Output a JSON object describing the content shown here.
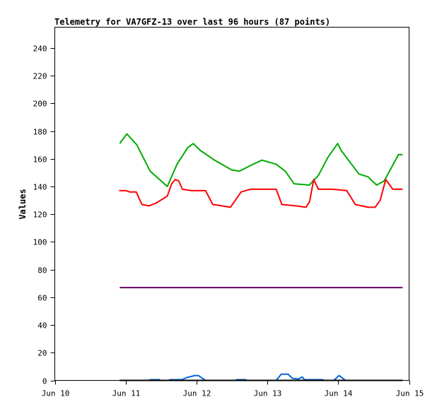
{
  "chart_data": {
    "type": "line",
    "title": "Telemetry for VA7GFZ-13 over last 96 hours (87 points)",
    "xlabel": "",
    "ylabel": "Values",
    "ylim": [
      0,
      255
    ],
    "xlim": [
      "Jun 10 00:00",
      "Jun 15 00:00"
    ],
    "yticks": [
      "0",
      "20",
      "40",
      "60",
      "80",
      "100",
      "120",
      "140",
      "160",
      "180",
      "200",
      "220",
      "240"
    ],
    "xticks": [
      "Jun 10",
      "Jun 11",
      "Jun 12",
      "Jun 13",
      "Jun 14",
      "Jun 15"
    ],
    "grid": false,
    "series": [
      {
        "color": "#00aa00",
        "points": [
          [
            "Jun 10 22:00",
            171
          ],
          [
            "Jun 11 00:24",
            178
          ],
          [
            "Jun 11 03:48",
            170
          ],
          [
            "Jun 11 08:18",
            151
          ],
          [
            "Jun 11 14:06",
            140
          ],
          [
            "Jun 11 17:24",
            156
          ],
          [
            "Jun 11 21:00",
            168
          ],
          [
            "Jun 11 22:54",
            171
          ],
          [
            "Jun 12 01:18",
            166
          ],
          [
            "Jun 12 06:06",
            159
          ],
          [
            "Jun 12 11:54",
            152
          ],
          [
            "Jun 12 14:30",
            151
          ],
          [
            "Jun 12 19:06",
            156
          ],
          [
            "Jun 12 22:12",
            159
          ],
          [
            "Jun 13 03:00",
            156
          ],
          [
            "Jun 13 06:06",
            151
          ],
          [
            "Jun 13 09:00",
            142
          ],
          [
            "Jun 13 14:12",
            141
          ],
          [
            "Jun 13 17:18",
            148
          ],
          [
            "Jun 13 20:30",
            161
          ],
          [
            "Jun 13 23:48",
            171
          ],
          [
            "Jun 14 01:00",
            166
          ],
          [
            "Jun 14 07:00",
            149
          ],
          [
            "Jun 14 10:06",
            147
          ],
          [
            "Jun 14 13:00",
            141
          ],
          [
            "Jun 14 15:36",
            144
          ],
          [
            "Jun 14 20:24",
            163
          ],
          [
            "Jun 14 21:48",
            163
          ]
        ]
      },
      {
        "color": "#ff0000",
        "points": [
          [
            "Jun 10 21:48",
            137
          ],
          [
            "Jun 11 00:12",
            137
          ],
          [
            "Jun 11 01:24",
            136
          ],
          [
            "Jun 11 03:36",
            136
          ],
          [
            "Jun 11 05:30",
            127
          ],
          [
            "Jun 11 07:54",
            126
          ],
          [
            "Jun 11 10:18",
            128
          ],
          [
            "Jun 11 14:06",
            133
          ],
          [
            "Jun 11 15:36",
            142
          ],
          [
            "Jun 11 16:48",
            145
          ],
          [
            "Jun 11 18:00",
            144
          ],
          [
            "Jun 11 19:12",
            138
          ],
          [
            "Jun 11 22:18",
            137
          ],
          [
            "Jun 12 03:06",
            137
          ],
          [
            "Jun 12 05:30",
            127
          ],
          [
            "Jun 12 08:36",
            126
          ],
          [
            "Jun 12 11:30",
            125
          ],
          [
            "Jun 12 15:06",
            136
          ],
          [
            "Jun 12 18:12",
            138
          ],
          [
            "Jun 13 03:00",
            138
          ],
          [
            "Jun 13 04:54",
            127
          ],
          [
            "Jun 13 09:30",
            126
          ],
          [
            "Jun 13 13:06",
            125
          ],
          [
            "Jun 13 14:18",
            129
          ],
          [
            "Jun 13 15:42",
            145
          ],
          [
            "Jun 13 17:18",
            138
          ],
          [
            "Jun 13 22:06",
            138
          ],
          [
            "Jun 14 02:54",
            137
          ],
          [
            "Jun 14 05:48",
            127
          ],
          [
            "Jun 14 10:06",
            125
          ],
          [
            "Jun 14 12:30",
            125
          ],
          [
            "Jun 14 14:12",
            130
          ],
          [
            "Jun 14 16:06",
            145
          ],
          [
            "Jun 14 18:30",
            138
          ],
          [
            "Jun 14 21:48",
            138
          ]
        ]
      },
      {
        "color": "#660066",
        "points": [
          [
            "Jun 10 22:00",
            67
          ],
          [
            "Jun 14 21:48",
            67
          ]
        ]
      },
      {
        "color": "#0066dd",
        "points": [
          [
            "Jun 10 22:00",
            0
          ],
          [
            "Jun 11 07:54",
            0
          ],
          [
            "Jun 11 08:18",
            0.5
          ],
          [
            "Jun 11 11:24",
            0.5
          ],
          [
            "Jun 11 11:48",
            0
          ],
          [
            "Jun 11 14:36",
            0
          ],
          [
            "Jun 11 15:00",
            0.5
          ],
          [
            "Jun 11 19:06",
            0.5
          ],
          [
            "Jun 11 20:36",
            2
          ],
          [
            "Jun 11 23:24",
            3.5
          ],
          [
            "Jun 12 00:36",
            3.5
          ],
          [
            "Jun 12 03:00",
            0
          ],
          [
            "Jun 12 13:18",
            0
          ],
          [
            "Jun 12 13:30",
            0.5
          ],
          [
            "Jun 12 16:42",
            0.5
          ],
          [
            "Jun 12 17:00",
            0
          ],
          [
            "Jun 13 03:00",
            0
          ],
          [
            "Jun 13 04:42",
            4.5
          ],
          [
            "Jun 13 07:00",
            4.5
          ],
          [
            "Jun 13 08:30",
            1.5
          ],
          [
            "Jun 13 10:36",
            1
          ],
          [
            "Jun 13 11:48",
            2.5
          ],
          [
            "Jun 13 12:36",
            0.5
          ],
          [
            "Jun 13 18:48",
            0.5
          ],
          [
            "Jun 13 19:06",
            0
          ],
          [
            "Jun 13 22:30",
            0
          ],
          [
            "Jun 14 00:18",
            3.5
          ],
          [
            "Jun 14 02:30",
            0
          ],
          [
            "Jun 14 21:48",
            0
          ]
        ]
      },
      {
        "color": "#000000",
        "points": [
          [
            "Jun 10 22:00",
            0
          ],
          [
            "Jun 14 21:48",
            0
          ]
        ]
      }
    ]
  }
}
